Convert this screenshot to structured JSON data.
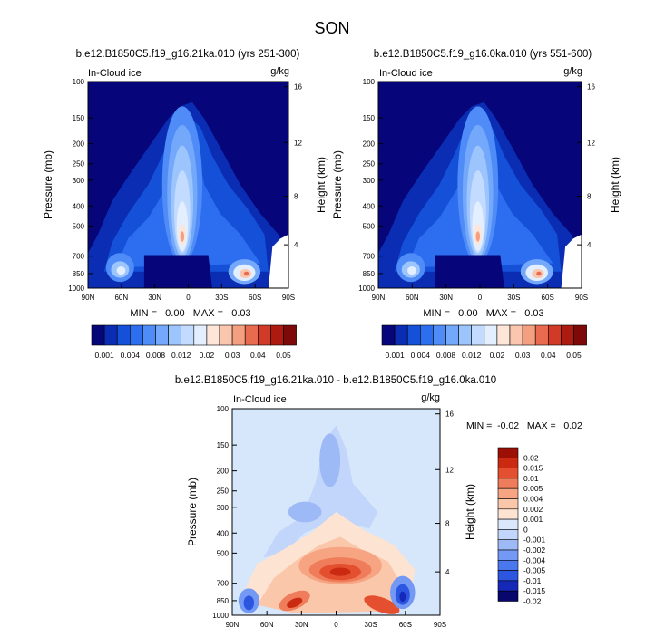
{
  "figure_title": "SON",
  "colors": {
    "top_scale": [
      "#06067a",
      "#0a2db4",
      "#1450d8",
      "#2d6ef0",
      "#4f8cf7",
      "#74a8fb",
      "#9cc4fd",
      "#c2dbfe",
      "#e3eefe",
      "#fde5d8",
      "#fbc6ae",
      "#f49f80",
      "#e86a4f",
      "#d03a26",
      "#ad1a10",
      "#7d0a08"
    ],
    "diff_scale": [
      "#07076e",
      "#1528b8",
      "#2c55e0",
      "#4a77ee",
      "#7399f4",
      "#9dbaf7",
      "#c2d5fa",
      "#dbe8fc",
      "#fde3d2",
      "#fbc7aa",
      "#f6a482",
      "#ef7c5a",
      "#e4502f",
      "#cb2a12",
      "#9c0f04"
    ],
    "background_diff": "#d6e6fb"
  },
  "chart_data": [
    {
      "type": "heatmap",
      "title": "b.e12.B1850C5.f19_g16.21ka.010 (yrs 251-300)",
      "left_label": "In-Cloud ice",
      "right_label": "g/kg",
      "xlabel": "",
      "ylabel": "Pressure (mb)",
      "y2label": "Height (km)",
      "x_ticks": [
        "90N",
        "60N",
        "30N",
        "0",
        "30S",
        "60S",
        "90S"
      ],
      "x_values": [
        90,
        60,
        30,
        0,
        -30,
        -60,
        -90
      ],
      "y_ticks": [
        "100",
        "150",
        "200",
        "250",
        "300",
        "400",
        "500",
        "700",
        "850",
        "1000"
      ],
      "y_values": [
        100,
        150,
        200,
        250,
        300,
        400,
        500,
        700,
        850,
        1000
      ],
      "y2_ticks": [
        "16",
        "12",
        "8",
        "4"
      ],
      "y_scale": "log",
      "stats_text": "MIN =   0.00   MAX =   0.03",
      "features": [
        {
          "lat": 7,
          "p": 550,
          "value": 0.03
        },
        {
          "lat": 7,
          "p": 300,
          "value": 0.012
        },
        {
          "lat": 7,
          "p": 160,
          "value": 0.004
        },
        {
          "lat": 62,
          "p": 830,
          "value": 0.012
        },
        {
          "lat": -55,
          "p": 850,
          "value": 0.02
        },
        {
          "lat": -20,
          "p": 600,
          "value": 0.004
        }
      ]
    },
    {
      "type": "heatmap",
      "title": "b.e12.B1850C5.f19_g16.0ka.010 (yrs 551-600)",
      "left_label": "In-Cloud ice",
      "right_label": "g/kg",
      "xlabel": "",
      "ylabel": "Pressure (mb)",
      "y2label": "Height (km)",
      "x_ticks": [
        "90N",
        "60N",
        "30N",
        "0",
        "30S",
        "60S",
        "90S"
      ],
      "x_values": [
        90,
        60,
        30,
        0,
        -30,
        -60,
        -90
      ],
      "y_ticks": [
        "100",
        "150",
        "200",
        "250",
        "300",
        "400",
        "500",
        "700",
        "850",
        "1000"
      ],
      "y_values": [
        100,
        150,
        200,
        250,
        300,
        400,
        500,
        700,
        850,
        1000
      ],
      "y2_ticks": [
        "16",
        "12",
        "8",
        "4"
      ],
      "y_scale": "log",
      "stats_text": "MIN =   0.00   MAX =   0.03",
      "features": [
        {
          "lat": 8,
          "p": 500,
          "value": 0.02
        },
        {
          "lat": 8,
          "p": 300,
          "value": 0.012
        },
        {
          "lat": 8,
          "p": 150,
          "value": 0.004
        },
        {
          "lat": 62,
          "p": 850,
          "value": 0.012
        },
        {
          "lat": -55,
          "p": 850,
          "value": 0.02
        },
        {
          "lat": -20,
          "p": 600,
          "value": 0.004
        }
      ]
    },
    {
      "type": "heatmap",
      "title": "b.e12.B1850C5.f19_g16.21ka.010 - b.e12.B1850C5.f19_g16.0ka.010",
      "left_label": "In-Cloud ice",
      "right_label": "g/kg",
      "xlabel": "",
      "ylabel": "Pressure (mb)",
      "y2label": "Height (km)",
      "x_ticks": [
        "90N",
        "60N",
        "30N",
        "0",
        "30S",
        "60S",
        "90S"
      ],
      "x_values": [
        90,
        60,
        30,
        0,
        -30,
        -60,
        -90
      ],
      "y_ticks": [
        "100",
        "150",
        "200",
        "250",
        "300",
        "400",
        "500",
        "700",
        "850",
        "1000"
      ],
      "y_values": [
        100,
        150,
        200,
        250,
        300,
        400,
        500,
        700,
        850,
        1000
      ],
      "y2_ticks": [
        "16",
        "12",
        "8",
        "4"
      ],
      "y_scale": "log",
      "stats_text": "MIN =  -0.02   MAX =   0.02",
      "features": [
        {
          "lat": 2,
          "p": 600,
          "value": 0.015
        },
        {
          "lat": 35,
          "p": 800,
          "value": 0.01
        },
        {
          "lat": -40,
          "p": 850,
          "value": 0.01
        },
        {
          "lat": 72,
          "p": 860,
          "value": -0.01
        },
        {
          "lat": -58,
          "p": 800,
          "value": -0.015
        },
        {
          "lat": 10,
          "p": 200,
          "value": -0.002
        }
      ]
    }
  ],
  "colorbars": {
    "top": {
      "labels": [
        "0.001",
        "0.004",
        "0.008",
        "0.012",
        "0.02",
        "0.03",
        "0.04",
        "0.05"
      ],
      "levels": [
        0.001,
        0.002,
        0.004,
        0.006,
        0.008,
        0.01,
        0.012,
        0.015,
        0.02,
        0.025,
        0.03,
        0.035,
        0.04,
        0.045,
        0.05
      ],
      "orientation": "horizontal"
    },
    "diff": {
      "labels": [
        "0.02",
        "0.015",
        "0.01",
        "0.005",
        "0.004",
        "0.002",
        "0.001",
        "0",
        "-0.001",
        "-0.002",
        "-0.004",
        "-0.005",
        "-0.01",
        "-0.015",
        "-0.02"
      ],
      "levels": [
        0.02,
        0.015,
        0.01,
        0.005,
        0.004,
        0.002,
        0.001,
        0,
        -0.001,
        -0.002,
        -0.004,
        -0.005,
        -0.01,
        -0.015,
        -0.02
      ],
      "orientation": "vertical"
    }
  }
}
